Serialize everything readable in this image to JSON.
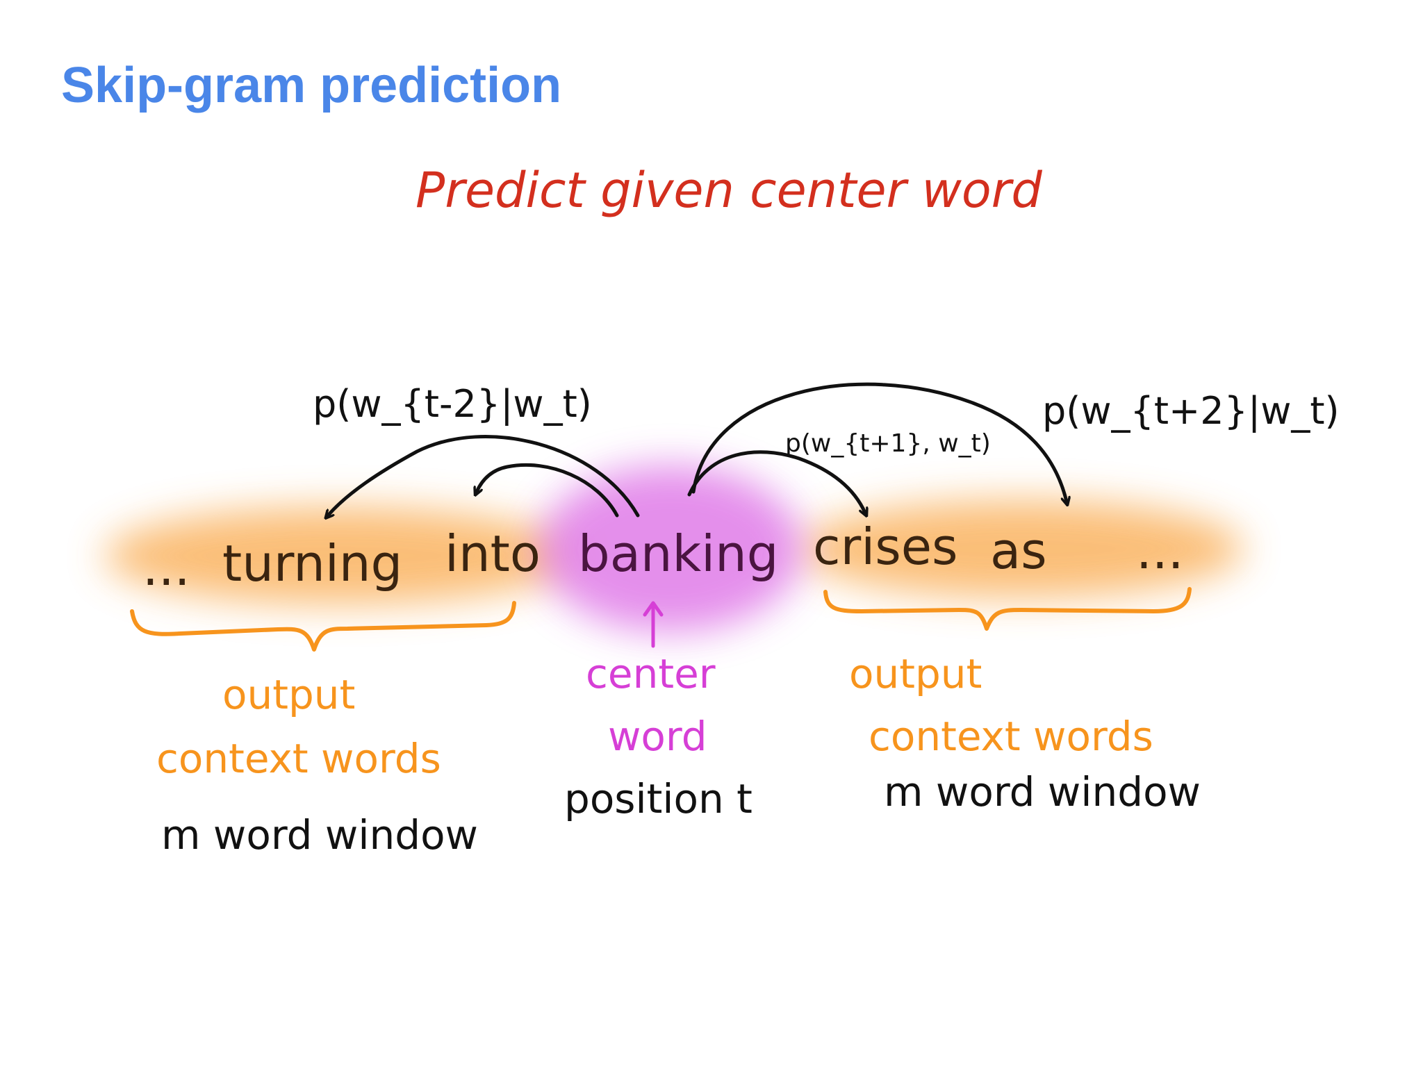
{
  "title": "Skip-gram prediction",
  "annotation": "Predict given center word",
  "sentence": {
    "left_ellipsis": "...",
    "words": [
      "turning",
      "into",
      "banking",
      "crises",
      "as"
    ],
    "right_ellipsis": "..."
  },
  "probabilities": {
    "p_t_minus_2": "p(w_{t-2}|w_t)",
    "p_t_plus_1": "p(w_{t+1}, w_t)",
    "p_t_plus_2": "p(w_{t+2}|w_t)"
  },
  "labels": {
    "left_output_line1": "output",
    "left_output_line2": "context words",
    "left_window": "m word window",
    "center_line1": "center",
    "center_line2": "word",
    "center_position": "position t",
    "right_output_line1": "output",
    "right_output_line2": "context words",
    "right_window": "m word window"
  },
  "colors": {
    "title": "#4a86e8",
    "annotation": "#d32f1e",
    "context": "#f7941d",
    "center": "#d63fd6",
    "ink": "#111111"
  }
}
